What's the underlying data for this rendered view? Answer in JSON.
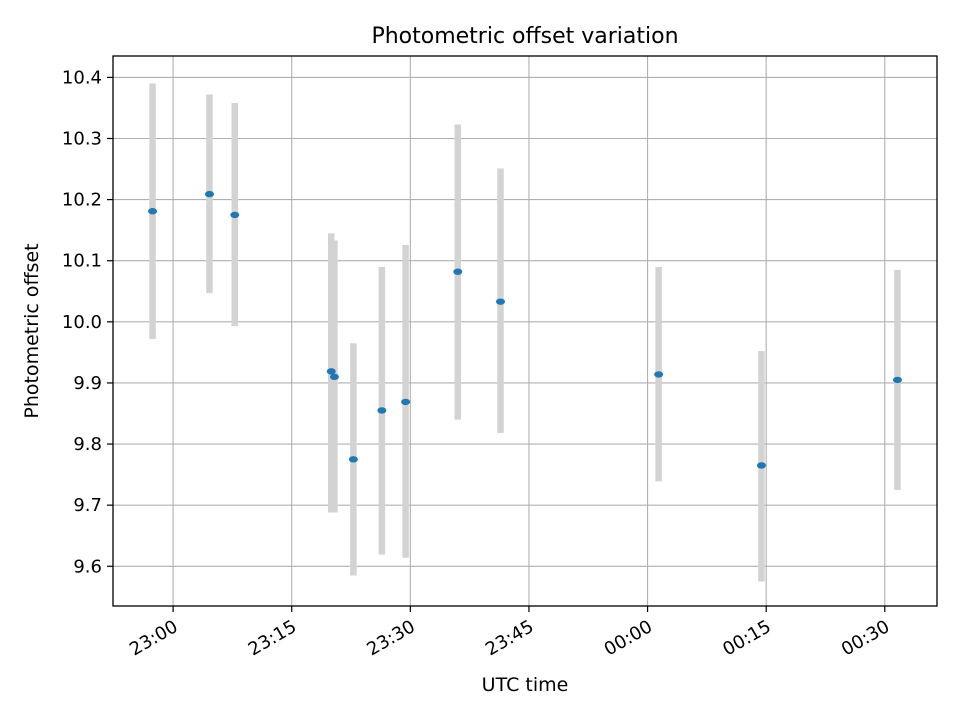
{
  "chart_data": {
    "type": "scatter",
    "title": "Photometric offset variation",
    "xlabel": "UTC time",
    "ylabel": "Photometric offset",
    "x_axis_kind": "time",
    "xlim": [
      "22:52:24",
      "00:36:36"
    ],
    "ylim": [
      9.535,
      10.435
    ],
    "x_tick_values": [
      "23:00",
      "23:15",
      "23:30",
      "23:45",
      "00:00",
      "00:15",
      "00:30"
    ],
    "x_tick_labels": [
      "23:00",
      "23:15",
      "23:30",
      "23:45",
      "00:00",
      "00:15",
      "00:30"
    ],
    "y_ticks": [
      9.6,
      9.7,
      9.8,
      9.9,
      10.0,
      10.1,
      10.2,
      10.3,
      10.4
    ],
    "y_tick_labels": [
      "9.6",
      "9.7",
      "9.8",
      "9.9",
      "10.0",
      "10.1",
      "10.2",
      "10.3",
      "10.4"
    ],
    "grid": true,
    "series": [
      {
        "points": [
          {
            "x": "22:57:24",
            "y": 10.181,
            "err_low": 9.972,
            "err_high": 10.39
          },
          {
            "x": "23:04:36",
            "y": 10.209,
            "err_low": 10.047,
            "err_high": 10.372
          },
          {
            "x": "23:07:48",
            "y": 10.175,
            "err_low": 9.993,
            "err_high": 10.358
          },
          {
            "x": "23:20:00",
            "y": 9.919,
            "err_low": 9.688,
            "err_high": 10.145
          },
          {
            "x": "23:20:24",
            "y": 9.91,
            "err_low": 9.688,
            "err_high": 10.133
          },
          {
            "x": "23:22:48",
            "y": 9.775,
            "err_low": 9.585,
            "err_high": 9.965
          },
          {
            "x": "23:26:24",
            "y": 9.855,
            "err_low": 9.619,
            "err_high": 10.09
          },
          {
            "x": "23:29:24",
            "y": 9.869,
            "err_low": 9.614,
            "err_high": 10.126
          },
          {
            "x": "23:36:00",
            "y": 10.082,
            "err_low": 9.84,
            "err_high": 10.323
          },
          {
            "x": "23:41:24",
            "y": 10.033,
            "err_low": 9.818,
            "err_high": 10.251
          },
          {
            "x": "00:01:24",
            "y": 9.914,
            "err_low": 9.739,
            "err_high": 10.09
          },
          {
            "x": "00:14:24",
            "y": 9.765,
            "err_low": 9.575,
            "err_high": 9.952
          },
          {
            "x": "00:31:36",
            "y": 9.905,
            "err_low": 9.725,
            "err_high": 10.085
          }
        ]
      }
    ],
    "colors": {
      "marker": "#1f77b4",
      "errorbar": "#d3d3d3",
      "grid": "#b0b0b0",
      "axes": "#000000"
    }
  }
}
